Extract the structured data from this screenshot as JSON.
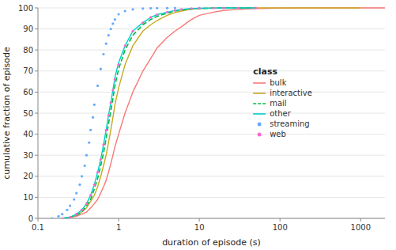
{
  "chart_data": {
    "type": "line",
    "xlabel": "duration of episode (s)",
    "ylabel": "cumulative fraction of episode",
    "log": "x",
    "xlim": [
      0.1,
      2000
    ],
    "xticks": [
      0.1,
      1,
      10,
      100,
      1000
    ],
    "ylim": [
      0,
      100
    ],
    "yticks": [
      0,
      10,
      20,
      30,
      40,
      50,
      60,
      70,
      80,
      90,
      100
    ],
    "grid": "y",
    "legend": "right",
    "legend_title": "class",
    "series": [
      {
        "name": "bulk",
        "color": "#f87878",
        "line_style": "solid",
        "x": [
          0.2,
          0.25,
          0.3,
          0.35,
          0.4,
          0.45,
          0.5,
          0.55,
          0.6,
          0.65,
          0.7,
          0.75,
          0.8,
          0.85,
          0.9,
          1.0,
          1.2,
          1.5,
          2.0,
          2.5,
          3.0,
          4.0,
          5.0,
          6.0,
          7.0,
          8.0,
          10.0,
          15.0,
          20.0,
          30.0,
          50.0,
          100.0,
          300.0,
          1000.0,
          2000.0
        ],
        "values": [
          0,
          0.5,
          1,
          2,
          3,
          5,
          7,
          9,
          12,
          15,
          18,
          22,
          26,
          30,
          34,
          40,
          50,
          60,
          70,
          76,
          81,
          86,
          89,
          91,
          93,
          94.5,
          96.5,
          98,
          98.8,
          99.3,
          99.7,
          99.9,
          100,
          100,
          100
        ]
      },
      {
        "name": "interactive",
        "color": "#c8a820",
        "line_style": "solid",
        "x": [
          0.2,
          0.25,
          0.3,
          0.35,
          0.4,
          0.45,
          0.5,
          0.55,
          0.6,
          0.65,
          0.7,
          0.75,
          0.8,
          0.85,
          0.9,
          1.0,
          1.2,
          1.5,
          2.0,
          2.5,
          3.0,
          4.0,
          5.0,
          6.0,
          7.0,
          8.0,
          10.0,
          15.0,
          20.0,
          30.0,
          50.0,
          100.0,
          300.0,
          1000.0
        ],
        "values": [
          0,
          0.5,
          1.5,
          3,
          5,
          8,
          11,
          15,
          20,
          25,
          30,
          36,
          42,
          48,
          54,
          62,
          73,
          82,
          89,
          92,
          94,
          96.5,
          97.8,
          98.5,
          99,
          99.4,
          99.7,
          99.9,
          100,
          100,
          100,
          100,
          100,
          100
        ]
      },
      {
        "name": "mail",
        "color": "#00bb44",
        "line_style": "dashed",
        "x": [
          0.2,
          0.25,
          0.3,
          0.35,
          0.4,
          0.45,
          0.5,
          0.55,
          0.6,
          0.65,
          0.7,
          0.75,
          0.8,
          0.85,
          0.9,
          1.0,
          1.2,
          1.5,
          2.0,
          2.5,
          3.0,
          4.0,
          5.0,
          6.0,
          8.0,
          10.0,
          15.0,
          20.0,
          30.0,
          50.0
        ],
        "values": [
          0,
          0.5,
          1.5,
          3,
          6,
          9,
          14,
          19,
          25,
          31,
          38,
          45,
          51,
          57,
          63,
          71,
          80,
          87,
          92,
          94.5,
          96,
          97.5,
          98.5,
          99,
          99.5,
          99.7,
          99.9,
          100,
          100,
          100
        ]
      },
      {
        "name": "other",
        "color": "#00cccc",
        "line_style": "solid",
        "x": [
          0.2,
          0.25,
          0.3,
          0.35,
          0.4,
          0.45,
          0.5,
          0.55,
          0.6,
          0.65,
          0.7,
          0.75,
          0.8,
          0.85,
          0.9,
          1.0,
          1.2,
          1.5,
          2.0,
          2.5,
          3.0,
          4.0,
          5.0,
          6.0,
          8.0,
          10.0,
          15.0,
          20.0,
          30.0,
          50.0
        ],
        "values": [
          0,
          0.5,
          2,
          4,
          7,
          11,
          16,
          22,
          28,
          35,
          42,
          49,
          55,
          61,
          67,
          74,
          82,
          89,
          93,
          95.5,
          96.8,
          98,
          98.8,
          99.3,
          99.7,
          99.8,
          99.95,
          100,
          100,
          100
        ]
      },
      {
        "name": "streaming",
        "color": "#66aaff",
        "line_style": "none",
        "marker": "circle",
        "x": [
          0.15,
          0.18,
          0.2,
          0.23,
          0.25,
          0.28,
          0.3,
          0.33,
          0.35,
          0.38,
          0.4,
          0.43,
          0.45,
          0.48,
          0.5,
          0.55,
          0.6,
          0.65,
          0.7,
          0.75,
          0.8,
          0.85,
          0.9,
          1.0,
          1.2,
          1.5,
          2.0,
          2.5,
          3.0,
          4.0,
          5.0,
          10.0,
          20.0,
          50.0
        ],
        "values": [
          0,
          1,
          2,
          4,
          6,
          9,
          12,
          16,
          20,
          25,
          30,
          36,
          42,
          48,
          54,
          63,
          71,
          78,
          83,
          87,
          90,
          92.5,
          94.5,
          97,
          98.5,
          99.3,
          99.7,
          99.85,
          99.9,
          99.95,
          100,
          100,
          100,
          100
        ]
      },
      {
        "name": "web",
        "color": "#ff66cc",
        "line_style": "none",
        "marker": "circle",
        "x": [
          0.2,
          0.25,
          0.3,
          0.35,
          0.4,
          0.45,
          0.5,
          0.55,
          0.6,
          0.65,
          0.7,
          0.75,
          0.8,
          0.85,
          0.9,
          1.0,
          1.2,
          1.5,
          2.0,
          2.5,
          3.0,
          4.0,
          5.0,
          6.0,
          8.0,
          10.0,
          15.0,
          20.0,
          30.0,
          50.0
        ],
        "values": [
          0,
          0.5,
          2,
          4,
          7,
          11,
          16,
          22,
          28,
          35,
          42,
          49,
          55,
          61,
          66,
          73,
          82,
          89,
          93,
          95.5,
          96.8,
          98,
          98.8,
          99.3,
          99.7,
          99.8,
          99.95,
          100,
          100,
          100
        ]
      }
    ]
  }
}
